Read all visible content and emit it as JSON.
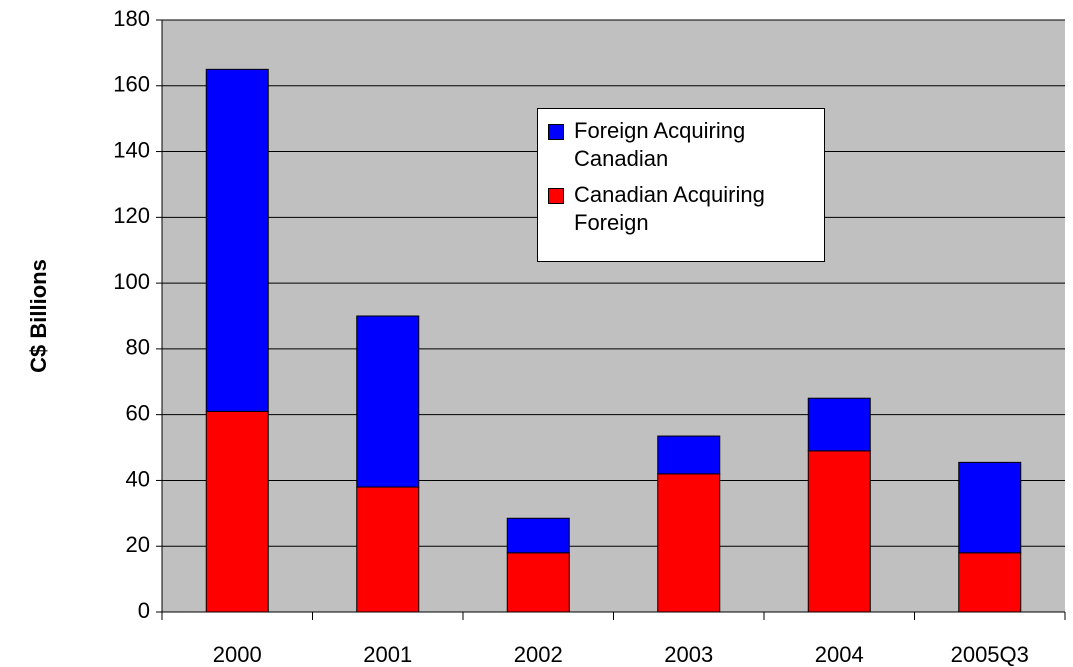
{
  "chart_data": {
    "type": "stacked_bar",
    "y_label": "C$ Billions",
    "categories": [
      "2000",
      "2001",
      "2002",
      "2003",
      "2004",
      "2005Q3"
    ],
    "series": [
      {
        "name": "Foreign Acquiring Canadian",
        "color": "#0000ff",
        "values": [
          104,
          52,
          10.5,
          11.5,
          16,
          27.5
        ]
      },
      {
        "name": "Canadian Acquiring Foreign",
        "color": "#ff0000",
        "values": [
          61,
          38,
          18,
          42,
          49,
          18
        ]
      }
    ],
    "ylim": [
      0,
      180
    ],
    "yticks": [
      0,
      20,
      40,
      60,
      80,
      100,
      120,
      140,
      160,
      180
    ],
    "grid": true
  }
}
